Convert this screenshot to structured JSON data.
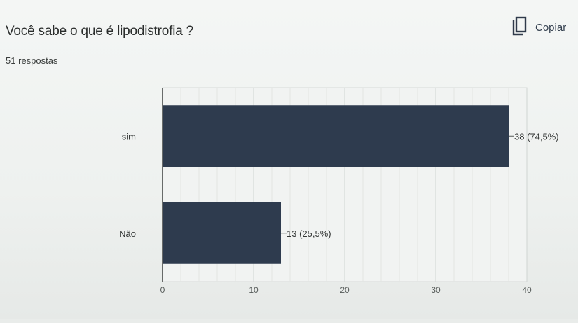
{
  "header": {
    "question": "Você sabe o que é lipodistrofia ?",
    "responses": "51 respostas",
    "copy_label": "Copiar",
    "copy_icon": "copy-icon"
  },
  "chart_data": {
    "type": "bar",
    "orientation": "horizontal",
    "categories": [
      "sim",
      "Não"
    ],
    "values": [
      38,
      13
    ],
    "value_labels": [
      "38 (74,5%)",
      "13 (25,5%)"
    ],
    "xlim": [
      0,
      40
    ],
    "xticks": [
      0,
      10,
      20,
      30,
      40
    ],
    "grid": true,
    "bar_color": "#2e3b4e"
  }
}
